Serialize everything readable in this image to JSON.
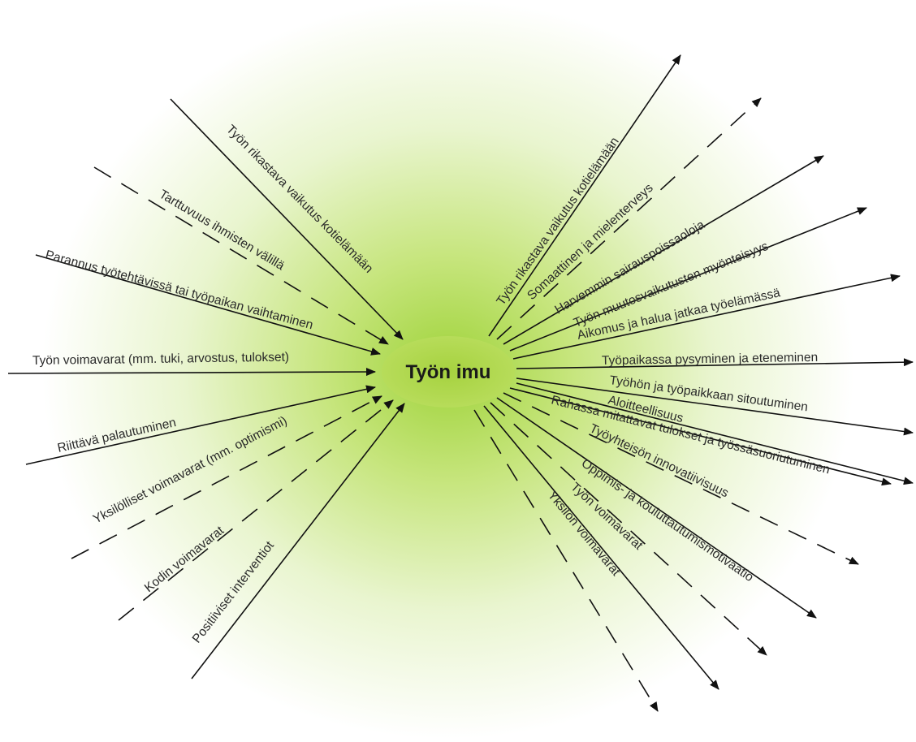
{
  "center": {
    "label": "Työn imu"
  },
  "colors": {
    "glow_inner": "#9fd33a",
    "glow_outer": "#ffffff",
    "line": "#111111",
    "text": "#2a2a2a"
  },
  "inputs": [
    {
      "label": "Työn rikastava vaikutus kotielämään",
      "style": "solid"
    },
    {
      "label": "Tarttuvuus ihmisten välillä",
      "style": "dashed"
    },
    {
      "label": "Parannus työtehtävissä tai työpaikan vaihtaminen",
      "style": "solid"
    },
    {
      "label": "Työn voimavarat (mm. tuki, arvostus, tulokset)",
      "style": "solid"
    },
    {
      "label": "Riittävä palautuminen",
      "style": "solid"
    },
    {
      "label": "Yksilölliset voimavarat (mm. optimismi)",
      "style": "dashed"
    },
    {
      "label": "Kodin voimavarat",
      "style": "dashed"
    },
    {
      "label": "Positiiviset interventiot",
      "style": "solid"
    }
  ],
  "outputs": [
    {
      "label": "Työn rikastava vaikutus kotielämään",
      "style": "solid"
    },
    {
      "label": "Somaattinen ja mielenterveys",
      "style": "dashed"
    },
    {
      "label": "Harvemmin sairauspoissaoloja",
      "style": "solid"
    },
    {
      "label": "Työn muutosvaikutusten myönteisyys",
      "style": "solid"
    },
    {
      "label": "Aikomus ja halua jatkaa työelämässä",
      "style": "solid"
    },
    {
      "label": "Työpaikassa pysyminen ja eteneminen",
      "style": "solid"
    },
    {
      "label": "Työhön ja työpaikkaan sitoutuminen",
      "style": "solid"
    },
    {
      "label": "Aloitteellisuus",
      "style": "solid"
    },
    {
      "label": "Rahassa mitattavat tulokset ja työssäsuoriutuminen",
      "style": "solid"
    },
    {
      "label": "Työyhteisön innovatiivisuus",
      "style": "dashed"
    },
    {
      "label": "Oppimis- ja kouluttautumismotivaatio",
      "style": "solid"
    },
    {
      "label": "Työn voimavarat",
      "style": "dashed"
    },
    {
      "label": "Yksilön voimavarat",
      "style": "solid"
    },
    {
      "label": "",
      "style": "dashed"
    }
  ]
}
